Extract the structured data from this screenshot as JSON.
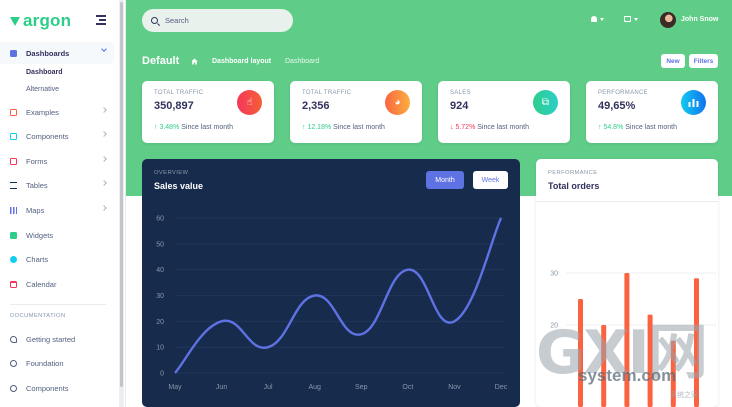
{
  "brand": {
    "name": "argon",
    "accent": "#2dce89"
  },
  "sidebar": {
    "items": [
      {
        "label": "Dashboards",
        "icon": "house-icon",
        "color": "#5e72e4"
      },
      {
        "label": "Examples",
        "icon": "ungroup-icon",
        "color": "#fb6340"
      },
      {
        "label": "Components",
        "icon": "ui-04-icon",
        "color": "#11cdef"
      },
      {
        "label": "Forms",
        "icon": "single-copy-icon",
        "color": "#f5365c"
      },
      {
        "label": "Tables",
        "icon": "align-left-icon",
        "color": "#172b4d"
      },
      {
        "label": "Maps",
        "icon": "map-big-icon",
        "color": "#5e72e4"
      },
      {
        "label": "Widgets",
        "icon": "archive-icon",
        "color": "#2dce89"
      },
      {
        "label": "Charts",
        "icon": "chart-pie-icon",
        "color": "#11cdef"
      },
      {
        "label": "Calendar",
        "icon": "calendar-icon",
        "color": "#f5365c"
      }
    ],
    "sub_items": [
      "Dashboard",
      "Alternative"
    ],
    "documentation_heading": "DOCUMENTATION",
    "doc_items": [
      {
        "label": "Getting started",
        "icon": "spaceship-icon"
      },
      {
        "label": "Foundation",
        "icon": "palette-icon"
      },
      {
        "label": "Components",
        "icon": "ui-04-icon"
      }
    ]
  },
  "header": {
    "search_placeholder": "Search",
    "user_name": "John Snow",
    "page_title": "Default",
    "breadcrumb": [
      "Dashboard layout",
      "Dashboard"
    ],
    "buttons": [
      "New",
      "Filters"
    ],
    "background": "#5fcd88"
  },
  "stats": [
    {
      "title": "TOTAL TRAFFIC",
      "value": "350,897",
      "change": "3.48%",
      "direction": "up",
      "since": "Since last month",
      "icon": "hand-pointer-icon",
      "icon_bg": "#f5365c"
    },
    {
      "title": "TOTAL TRAFFIC",
      "value": "2,356",
      "change": "12.18%",
      "direction": "up",
      "since": "Since last month",
      "icon": "chart-pie-icon",
      "icon_bg": "#fb6340"
    },
    {
      "title": "SALES",
      "value": "924",
      "change": "5.72%",
      "direction": "down",
      "since": "Since last month",
      "icon": "money-coins-icon",
      "icon_bg": "#2dce89"
    },
    {
      "title": "PERFORMANCE",
      "value": "49,65%",
      "change": "54.8%",
      "direction": "up",
      "since": "Since last month",
      "icon": "chart-bar-icon",
      "icon_bg": "#11cdef"
    }
  ],
  "sales_card": {
    "overline": "OVERVIEW",
    "title": "Sales value",
    "toggle": [
      "Month",
      "Week"
    ]
  },
  "orders_card": {
    "overline": "PERFORMANCE",
    "title": "Total orders"
  },
  "watermark": {
    "big": "GXI网",
    "url": "system.com",
    "small": "系统之家"
  },
  "chart_data": [
    {
      "type": "line",
      "title": "Sales value",
      "categories": [
        "May",
        "Jun",
        "Jul",
        "Aug",
        "Sep",
        "Oct",
        "Nov",
        "Dec"
      ],
      "values": [
        0,
        20,
        10,
        30,
        15,
        40,
        20,
        60
      ],
      "yticks": [
        0,
        10,
        20,
        30,
        40,
        50,
        60
      ],
      "ylim": [
        0,
        60
      ],
      "grid": true,
      "color": "#5e72e4"
    },
    {
      "type": "bar",
      "title": "Total orders",
      "values": [
        25,
        20,
        30,
        22,
        17,
        29
      ],
      "yticks": [
        20,
        30
      ],
      "color": "#fb6340"
    }
  ]
}
